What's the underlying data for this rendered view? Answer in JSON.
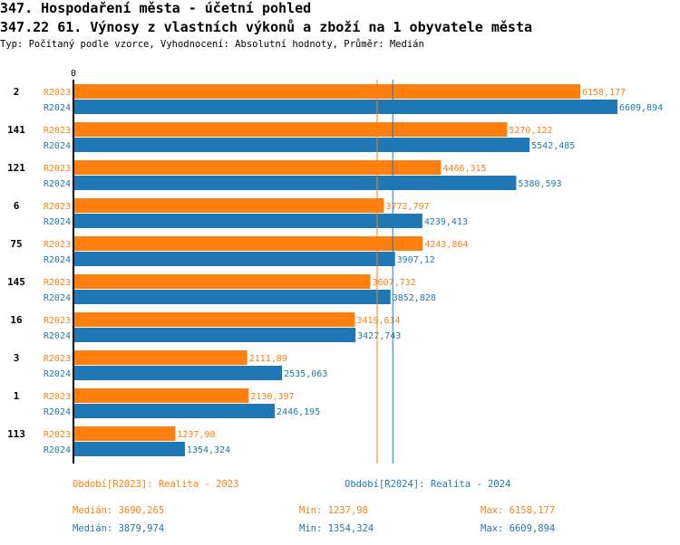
{
  "title": "347. Hospodaření města - účetní pohled",
  "subtitle": "347.22 61. Výnosy z vlastních výkonů a zboží na 1 obyvatele města",
  "info": "Typ: Počítaný podle vzorce, Vyhodnocení: Absolutní hodnoty, Průměr: Medián",
  "chart_data": {
    "type": "bar",
    "orientation": "horizontal",
    "x_tick_labels": [
      "0"
    ],
    "xlim": [
      0,
      6609.894
    ],
    "categories": [
      "2",
      "141",
      "121",
      "6",
      "75",
      "145",
      "16",
      "3",
      "1",
      "113"
    ],
    "series": [
      {
        "name": "R2023",
        "color": "#ff7f0e",
        "values": [
          6158.177,
          5270.122,
          4466.315,
          3772.797,
          4243.864,
          3607.732,
          3419.634,
          2111.89,
          2130.397,
          1237.98
        ],
        "labels": [
          "6158,177",
          "5270,122",
          "4466,315",
          "3772,797",
          "4243,864",
          "3607,732",
          "3419,634",
          "2111,89",
          "2130,397",
          "1237,98"
        ]
      },
      {
        "name": "R2024",
        "color": "#1f77b4",
        "values": [
          6609.894,
          5542.485,
          5380.593,
          4239.413,
          3907.12,
          3852.828,
          3427.743,
          2535.063,
          2446.195,
          1354.324
        ],
        "labels": [
          "6609,894",
          "5542,485",
          "5380,593",
          "4239,413",
          "3907,12",
          "3852,828",
          "3427,743",
          "2535,063",
          "2446,195",
          "1354,324"
        ]
      }
    ],
    "median_lines": [
      {
        "series": "R2023",
        "value": 3690.265
      },
      {
        "series": "R2024",
        "value": 3879.974
      }
    ],
    "legend": [
      {
        "text": "Období[R2023]: Realita - 2023",
        "color": "#ff7f0e"
      },
      {
        "text": "Období[R2024]: Realita - 2024",
        "color": "#1f77b4"
      }
    ],
    "stats": [
      {
        "median": "Medián: 3690,265",
        "min": "Min: 1237,98",
        "max": "Max: 6158,177",
        "color": "#ff7f0e"
      },
      {
        "median": "Medián: 3879,974",
        "min": "Min: 1354,324",
        "max": "Max: 6609,894",
        "color": "#1f77b4"
      }
    ]
  }
}
